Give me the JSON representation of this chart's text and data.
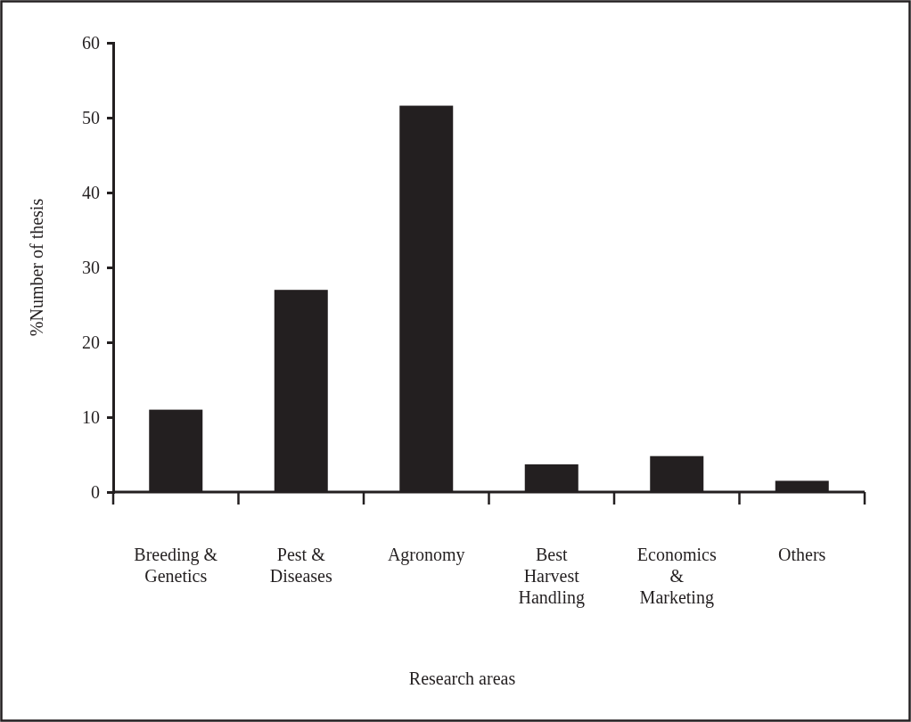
{
  "chart_data": {
    "type": "bar",
    "xlabel": "Research areas",
    "ylabel": "%Number of thesis",
    "categories": [
      "Breeding & Genetics",
      "Pest & Diseases",
      "Agronomy",
      "Best Harvest Handling",
      "Economics & Marketing",
      "Others"
    ],
    "values": [
      11,
      27,
      51.6,
      3.7,
      4.8,
      1.5
    ],
    "color": "#231f20",
    "ylim": [
      0,
      60
    ],
    "yticks": [
      0,
      10,
      20,
      30,
      40,
      50,
      60
    ],
    "grid": false
  }
}
